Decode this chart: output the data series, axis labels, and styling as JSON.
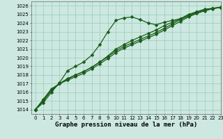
{
  "xlabel": "Graphe pression niveau de la mer (hPa)",
  "ylim": [
    1013.5,
    1026.5
  ],
  "xlim": [
    -0.5,
    23
  ],
  "yticks": [
    1014,
    1015,
    1016,
    1017,
    1018,
    1019,
    1020,
    1021,
    1022,
    1023,
    1024,
    1025,
    1026
  ],
  "xticks": [
    0,
    1,
    2,
    3,
    4,
    5,
    6,
    7,
    8,
    9,
    10,
    11,
    12,
    13,
    14,
    15,
    16,
    17,
    18,
    19,
    20,
    21,
    22,
    23
  ],
  "bg_color": "#cce8e0",
  "grid_color": "#99ccbb",
  "line_color": "#1a5c1a",
  "series": [
    [
      1014.0,
      1014.8,
      1016.0,
      1017.1,
      1018.5,
      1019.0,
      1019.5,
      1020.3,
      1021.5,
      1023.0,
      1024.3,
      1024.6,
      1024.7,
      1024.4,
      1024.0,
      1023.8,
      1024.1,
      1024.3,
      1024.5,
      1025.0,
      1025.3,
      1025.6,
      1025.7,
      1025.8
    ],
    [
      1014.0,
      1015.0,
      1016.2,
      1017.0,
      1017.6,
      1018.0,
      1018.4,
      1018.9,
      1019.5,
      1020.2,
      1021.0,
      1021.5,
      1022.0,
      1022.4,
      1022.8,
      1023.2,
      1023.7,
      1024.1,
      1024.5,
      1024.9,
      1025.3,
      1025.5,
      1025.7,
      1025.8
    ],
    [
      1014.0,
      1015.1,
      1016.3,
      1017.0,
      1017.5,
      1018.0,
      1018.4,
      1018.9,
      1019.5,
      1020.1,
      1020.8,
      1021.3,
      1021.7,
      1022.1,
      1022.5,
      1022.9,
      1023.4,
      1023.9,
      1024.4,
      1024.8,
      1025.2,
      1025.5,
      1025.7,
      1025.85
    ],
    [
      1014.0,
      1015.2,
      1016.4,
      1017.0,
      1017.4,
      1017.8,
      1018.2,
      1018.7,
      1019.3,
      1019.9,
      1020.6,
      1021.1,
      1021.5,
      1021.9,
      1022.3,
      1022.7,
      1023.2,
      1023.7,
      1024.2,
      1024.7,
      1025.1,
      1025.4,
      1025.65,
      1025.8
    ]
  ],
  "marker": "D",
  "marker_size": 2.5,
  "line_width": 0.9,
  "tick_fontsize": 5,
  "label_fontsize": 6.5,
  "label_fontweight": "bold"
}
